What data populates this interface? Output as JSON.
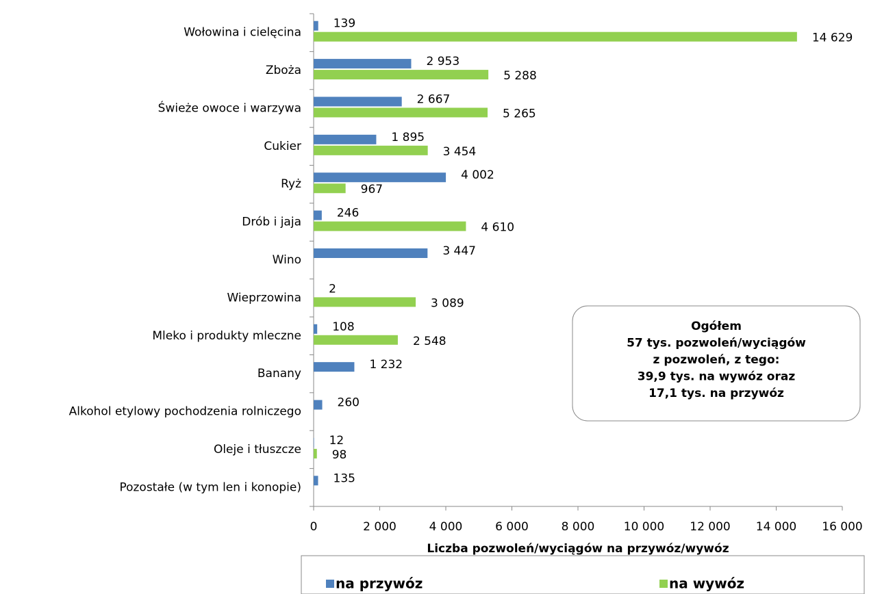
{
  "chart_data": {
    "type": "hbar",
    "categories": [
      "Wołowina i cielęcina",
      "Zboża",
      "Świeże owoce i warzywa",
      "Cukier",
      "Ryż",
      "Drób i jaja",
      "Wino",
      "Wieprzowina",
      "Mleko i produkty mleczne",
      "Banany",
      "Alkohol etylowy pochodzenia rolniczego",
      "Oleje i tłuszcze",
      "Pozostałe (w tym len i konopie)"
    ],
    "series": [
      {
        "name": "na przywóz",
        "color": "#4f81bd",
        "values": [
          139,
          2953,
          2667,
          1895,
          4002,
          246,
          3447,
          2,
          108,
          1232,
          260,
          12,
          135
        ],
        "value_labels": [
          "139",
          "2 953",
          "2 667",
          "1 895",
          "4 002",
          "246",
          "3 447",
          "2",
          "108",
          "1 232",
          "260",
          "12",
          "135"
        ]
      },
      {
        "name": "na wywóz",
        "color": "#92d050",
        "values": [
          14629,
          5288,
          5265,
          3454,
          967,
          4610,
          null,
          3089,
          2548,
          null,
          null,
          98,
          null
        ],
        "value_labels": [
          "14 629",
          "5 288",
          "5 265",
          "3 454",
          "967",
          "4 610",
          null,
          "3 089",
          "2 548",
          null,
          null,
          "98",
          null
        ]
      }
    ],
    "x_label": "Liczba pozwoleń/wyciągów na przywóz/wywóz",
    "xlim": [
      0,
      16000
    ],
    "xticks": [
      0,
      {
        "value": 2000,
        "label": "2 000"
      },
      {
        "value": 4000,
        "label": "4 000"
      },
      {
        "value": 6000,
        "label": "6 000"
      },
      {
        "value": 8000,
        "label": "8 000"
      },
      {
        "value": 10000,
        "label": "10 000"
      },
      {
        "value": 12000,
        "label": "12 000"
      },
      {
        "value": 14000,
        "label": "14 000"
      },
      {
        "value": 16000,
        "label": "16 000"
      }
    ],
    "annotation": [
      "Ogółem",
      "57 tys. pozwoleń/wyciągów",
      "z pozwoleń, z tego:",
      "39,9 tys. na wywóz oraz",
      "17,1 tys. na przywóz"
    ],
    "legend": "bottom"
  }
}
